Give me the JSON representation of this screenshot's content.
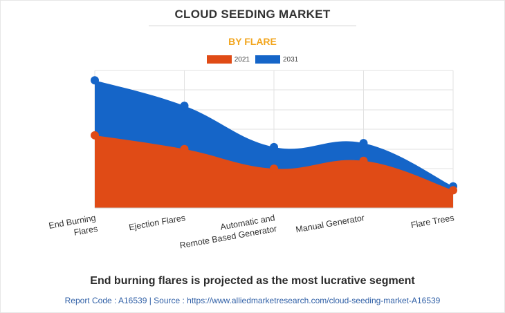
{
  "header": {
    "title": "CLOUD SEEDING MARKET",
    "subtitle": "BY FLARE"
  },
  "legend": [
    {
      "label": "2021",
      "color": "#e04b16"
    },
    {
      "label": "2031",
      "color": "#1565c8"
    }
  ],
  "chart_data": {
    "type": "area",
    "categories": [
      [
        "End Burning",
        "Flares"
      ],
      [
        "Ejection Flares"
      ],
      [
        "Automatic and",
        "Remote Based Generator"
      ],
      [
        "Manual Generator"
      ],
      [
        "Flare Trees"
      ]
    ],
    "series": [
      {
        "name": "2031",
        "color": "#1565c8",
        "values": [
          6.5,
          5.2,
          3.1,
          3.3,
          1.1
        ]
      },
      {
        "name": "2021",
        "color": "#e04b16",
        "values": [
          3.7,
          3.0,
          2.0,
          2.4,
          0.9
        ]
      }
    ],
    "ylim": [
      0,
      7
    ],
    "grid": true,
    "legend_position": "top-center",
    "stacked": false
  },
  "footer": {
    "headline": "End burning flares is projected as the most lucrative segment",
    "report": "Report Code : A16539  |  Source : https://www.alliedmarketresearch.com/cloud-seeding-market-A16539"
  }
}
